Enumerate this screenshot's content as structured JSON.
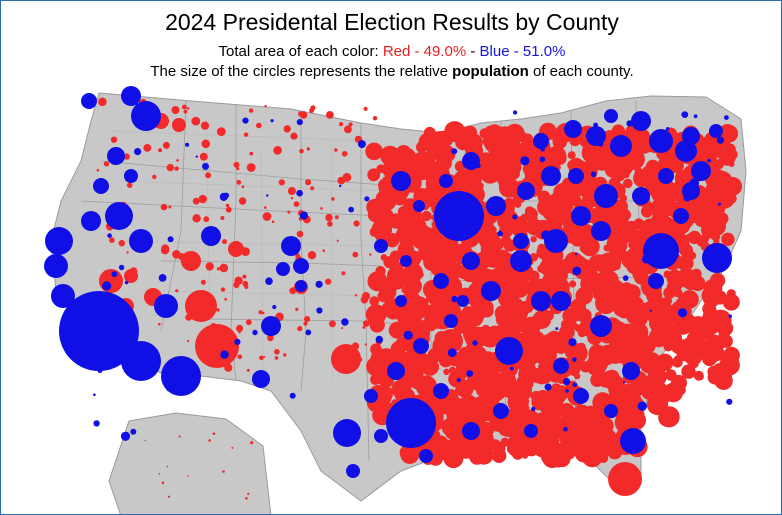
{
  "header": {
    "title": "2024 Presidental Election Results by County",
    "area_prefix": "Total area of each color: ",
    "red_label": "Red - 49.0%",
    "separator": " - ",
    "blue_label": "Blue - 51.0%",
    "size_prefix": "The size of the circles represents the relative ",
    "size_bold": "population",
    "size_suffix": " of each county."
  },
  "colors": {
    "red": "#f22a2a",
    "blue": "#1010e6",
    "land": "#c8c8c8",
    "land_stroke": "#9a9a9a"
  },
  "legend_shares": {
    "red_percent": 49.0,
    "blue_percent": 51.0
  }
}
